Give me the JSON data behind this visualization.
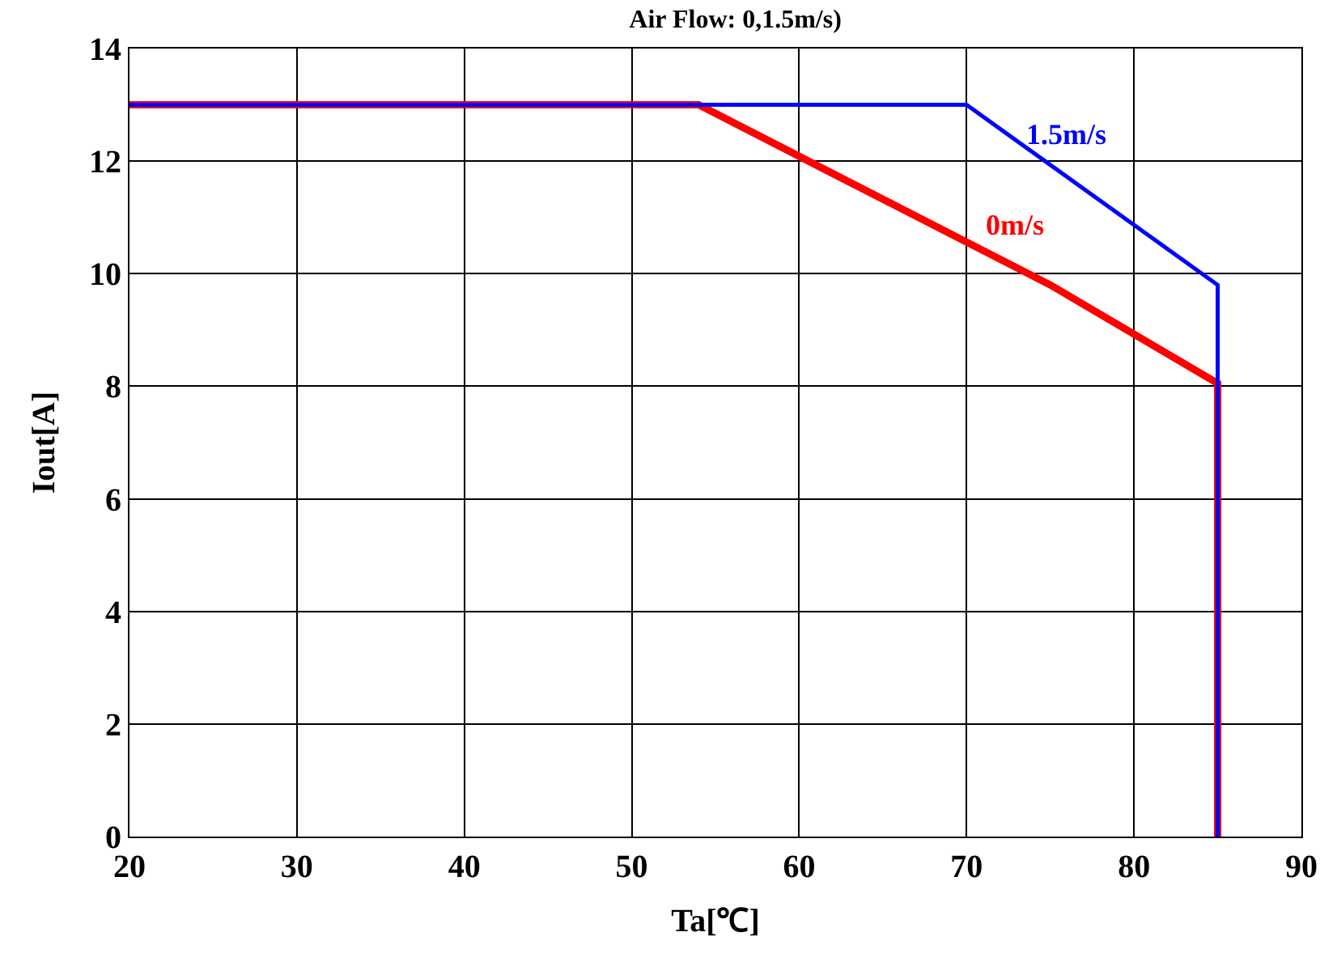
{
  "chart_data": {
    "type": "line",
    "title": "Air Flow: 0,1.5m/s)",
    "xlabel": "Ta[℃]",
    "ylabel": "Iout[A]",
    "series": [
      {
        "name": "1.5m/s",
        "color": "#0000ff",
        "x": [
          20,
          70,
          85,
          85
        ],
        "values": [
          13,
          13,
          9.8,
          0
        ]
      },
      {
        "name": "0m/s",
        "color": "#ff0000",
        "x": [
          20,
          54,
          75,
          85,
          85
        ],
        "values": [
          13,
          13,
          9.8,
          8.05,
          0
        ]
      }
    ],
    "xlim": [
      20,
      90
    ],
    "xticks": [
      20,
      30,
      40,
      50,
      60,
      70,
      80,
      90
    ],
    "ylim": [
      0,
      14
    ],
    "yticks": [
      0,
      2,
      4,
      6,
      8,
      10,
      12,
      14
    ],
    "grid": true,
    "legend": false,
    "marker": "none",
    "line_style": "solid"
  }
}
